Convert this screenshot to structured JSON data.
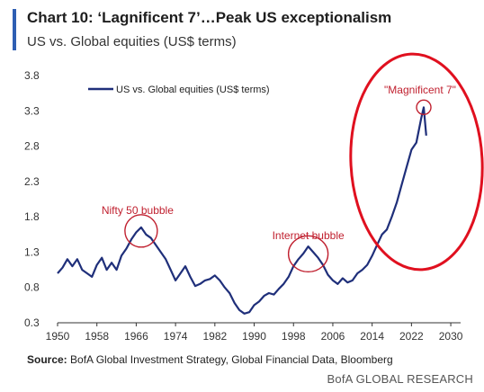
{
  "header": {
    "title": "Chart 10: ‘Lagnificent 7’…Peak US exceptionalism",
    "subtitle": "US vs. Global equities (US$ terms)"
  },
  "footer": {
    "source_label": "Source:",
    "source_text": "BofA Global Investment Strategy, Global Financial Data, Bloomberg",
    "credit": "BofA GLOBAL RESEARCH"
  },
  "colors": {
    "line": "#1f2f7a",
    "annotation": "#c0202f",
    "big_circle": "#e0101f",
    "axis": "#333333"
  },
  "chart_data": {
    "type": "line",
    "title": "",
    "xlabel": "",
    "ylabel": "",
    "xlim": [
      1950,
      2032
    ],
    "ylim": [
      0.3,
      3.8
    ],
    "x_ticks": [
      1950,
      1958,
      1966,
      1974,
      1982,
      1990,
      1998,
      2006,
      2014,
      2022,
      2030
    ],
    "y_ticks": [
      0.3,
      0.8,
      1.3,
      1.8,
      2.3,
      2.8,
      3.3,
      3.8
    ],
    "y_tick_labels": [
      "0.3",
      "0.8",
      "1.3",
      "1.8",
      "2.3",
      "2.8",
      "3.3",
      "3.8"
    ],
    "grid": false,
    "legend": "top-left",
    "series": [
      {
        "name": "US vs. Global equities (US$ terms)",
        "points": [
          [
            1950,
            1.0
          ],
          [
            1951,
            1.08
          ],
          [
            1952,
            1.2
          ],
          [
            1953,
            1.1
          ],
          [
            1954,
            1.2
          ],
          [
            1955,
            1.05
          ],
          [
            1956,
            1.0
          ],
          [
            1957,
            0.95
          ],
          [
            1958,
            1.12
          ],
          [
            1959,
            1.22
          ],
          [
            1960,
            1.05
          ],
          [
            1961,
            1.15
          ],
          [
            1962,
            1.05
          ],
          [
            1963,
            1.25
          ],
          [
            1964,
            1.35
          ],
          [
            1965,
            1.48
          ],
          [
            1966,
            1.58
          ],
          [
            1967,
            1.65
          ],
          [
            1968,
            1.55
          ],
          [
            1969,
            1.5
          ],
          [
            1970,
            1.4
          ],
          [
            1971,
            1.3
          ],
          [
            1972,
            1.2
          ],
          [
            1973,
            1.05
          ],
          [
            1974,
            0.9
          ],
          [
            1975,
            1.0
          ],
          [
            1976,
            1.1
          ],
          [
            1977,
            0.95
          ],
          [
            1978,
            0.82
          ],
          [
            1979,
            0.85
          ],
          [
            1980,
            0.9
          ],
          [
            1981,
            0.92
          ],
          [
            1982,
            0.97
          ],
          [
            1983,
            0.9
          ],
          [
            1984,
            0.8
          ],
          [
            1985,
            0.72
          ],
          [
            1986,
            0.58
          ],
          [
            1987,
            0.48
          ],
          [
            1988,
            0.43
          ],
          [
            1989,
            0.45
          ],
          [
            1990,
            0.55
          ],
          [
            1991,
            0.6
          ],
          [
            1992,
            0.68
          ],
          [
            1993,
            0.72
          ],
          [
            1994,
            0.7
          ],
          [
            1995,
            0.78
          ],
          [
            1996,
            0.85
          ],
          [
            1997,
            0.95
          ],
          [
            1998,
            1.1
          ],
          [
            1999,
            1.2
          ],
          [
            2000,
            1.28
          ],
          [
            2001,
            1.38
          ],
          [
            2002,
            1.3
          ],
          [
            2003,
            1.22
          ],
          [
            2004,
            1.12
          ],
          [
            2005,
            0.98
          ],
          [
            2006,
            0.9
          ],
          [
            2007,
            0.85
          ],
          [
            2008,
            0.93
          ],
          [
            2009,
            0.87
          ],
          [
            2010,
            0.9
          ],
          [
            2011,
            1.0
          ],
          [
            2012,
            1.05
          ],
          [
            2013,
            1.12
          ],
          [
            2014,
            1.25
          ],
          [
            2015,
            1.4
          ],
          [
            2016,
            1.55
          ],
          [
            2017,
            1.62
          ],
          [
            2018,
            1.8
          ],
          [
            2019,
            2.0
          ],
          [
            2020,
            2.25
          ],
          [
            2021,
            2.5
          ],
          [
            2022,
            2.75
          ],
          [
            2023,
            2.85
          ],
          [
            2024,
            3.2
          ],
          [
            2024.5,
            3.35
          ],
          [
            2025,
            2.95
          ]
        ]
      }
    ],
    "annotations": [
      {
        "text": "Nifty 50 bubble",
        "x": 1967,
        "y": 1.6
      },
      {
        "text": "Internet bubble",
        "x": 2001,
        "y": 1.25
      },
      {
        "text": "\"Magnificent 7\"",
        "x": 2024.5,
        "y": 3.35
      }
    ]
  }
}
